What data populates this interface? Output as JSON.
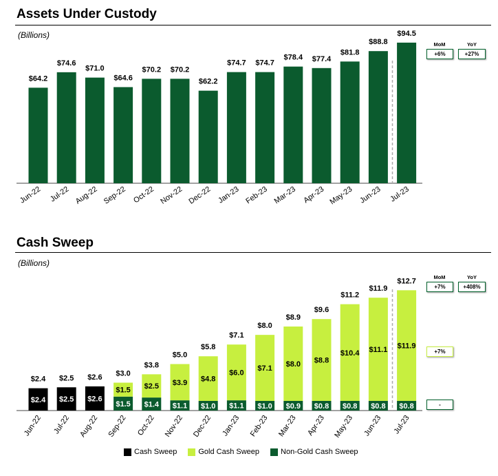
{
  "chart_data": [
    {
      "type": "bar",
      "title": "Assets Under Custody",
      "units_label": "(Billions)",
      "categories": [
        "Jun-22",
        "Jul-22",
        "Aug-22",
        "Sep-22",
        "Oct-22",
        "Nov-22",
        "Dec-22",
        "Jan-23",
        "Feb-23",
        "Mar-23",
        "Apr-23",
        "May-23",
        "Jun-23",
        "Jul-23"
      ],
      "values": [
        64.2,
        74.6,
        71.0,
        64.6,
        70.2,
        70.2,
        62.2,
        74.7,
        74.7,
        78.4,
        77.4,
        81.8,
        88.8,
        94.5
      ],
      "value_labels": [
        "$64.2",
        "$74.6",
        "$71.0",
        "$64.6",
        "$70.2",
        "$70.2",
        "$62.2",
        "$74.7",
        "$74.7",
        "$78.4",
        "$77.4",
        "$81.8",
        "$88.8",
        "$94.5"
      ],
      "color": "#0b5b2e",
      "ylim": [
        0,
        100
      ],
      "grid": false,
      "kpis": {
        "mom_label": "MoM",
        "yoy_label": "YoY",
        "mom": "+6%",
        "yoy": "+27%"
      }
    },
    {
      "type": "stacked_bar",
      "title": "Cash Sweep",
      "units_label": "(Billions)",
      "categories": [
        "Jun-22",
        "Jul-22",
        "Aug-22",
        "Sep-22",
        "Oct-22",
        "Nov-22",
        "Dec-22",
        "Jan-23",
        "Feb-23",
        "Mar-23",
        "Apr-23",
        "May-23",
        "Jun-23",
        "Jul-23"
      ],
      "series": [
        {
          "name": "Cash Sweep",
          "color": "#000000",
          "values": [
            2.4,
            2.5,
            2.6,
            0,
            0,
            0,
            0,
            0,
            0,
            0,
            0,
            0,
            0,
            0
          ],
          "labels": [
            "$2.4",
            "$2.5",
            "$2.6",
            "",
            "",
            "",
            "",
            "",
            "",
            "",
            "",
            "",
            "",
            ""
          ]
        },
        {
          "name": "Non-Gold Cash Sweep",
          "color": "#0b5b2e",
          "values": [
            0,
            0,
            0,
            1.5,
            1.4,
            1.1,
            1.0,
            1.1,
            1.0,
            0.9,
            0.8,
            0.8,
            0.8,
            0.8
          ],
          "labels": [
            "",
            "",
            "",
            "$1.5",
            "$1.4",
            "$1.1",
            "$1.0",
            "$1.1",
            "$1.0",
            "$0.9",
            "$0.8",
            "$0.8",
            "$0.8",
            "$0.8"
          ]
        },
        {
          "name": "Gold Cash Sweep",
          "color": "#c7ef3f",
          "values": [
            0,
            0,
            0,
            1.5,
            2.5,
            3.9,
            4.8,
            6.0,
            7.1,
            8.0,
            8.8,
            10.4,
            11.1,
            11.9
          ],
          "labels": [
            "",
            "",
            "",
            "$1.5",
            "$2.5",
            "$3.9",
            "$4.8",
            "$6.0",
            "$7.1",
            "$8.0",
            "$8.8",
            "$10.4",
            "$11.1",
            "$11.9"
          ]
        }
      ],
      "totals": [
        2.4,
        2.5,
        2.6,
        3.0,
        3.8,
        5.0,
        5.8,
        7.1,
        8.0,
        8.9,
        9.6,
        11.2,
        11.9,
        12.7
      ],
      "total_labels": [
        "$2.4",
        "$2.5",
        "$2.6",
        "$3.0",
        "$3.8",
        "$5.0",
        "$5.8",
        "$7.1",
        "$8.0",
        "$8.9",
        "$9.6",
        "$11.2",
        "$11.9",
        "$12.7"
      ],
      "ylim": [
        0,
        13
      ],
      "grid": false,
      "legend": {
        "position": "bottom",
        "items": [
          {
            "name": "Cash Sweep",
            "color": "#000000"
          },
          {
            "name": "Gold Cash Sweep",
            "color": "#c7ef3f"
          },
          {
            "name": "Non-Gold Cash Sweep",
            "color": "#0b5b2e"
          }
        ]
      },
      "kpis": {
        "mom_label": "MoM",
        "yoy_label": "YoY",
        "mom": "+7%",
        "yoy": "+408%",
        "gold_mom": "+7%",
        "nongold_mom": "-"
      }
    }
  ]
}
